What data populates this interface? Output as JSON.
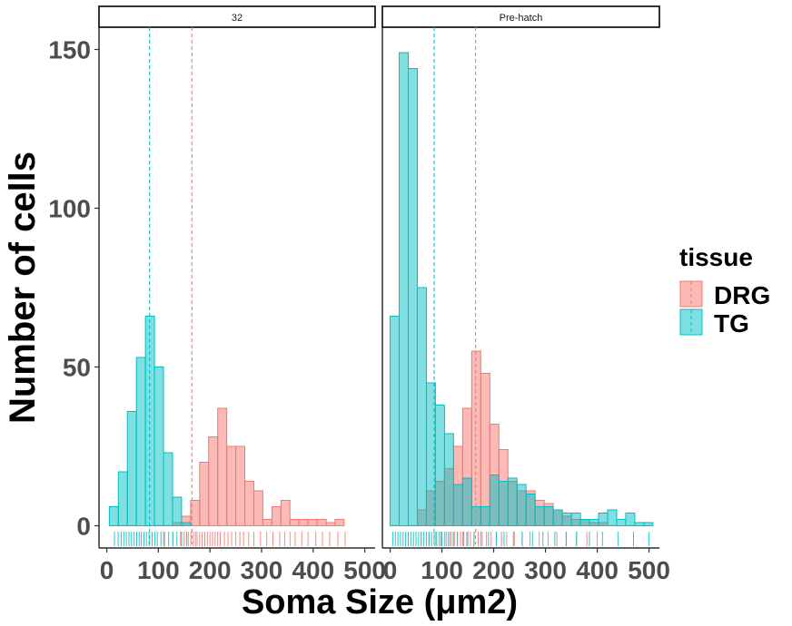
{
  "chart_data": {
    "type": "histogram",
    "xlabel": "Soma Size (μm2)",
    "ylabel": "Number of cells",
    "xlim": [
      -15,
      520
    ],
    "ylim": [
      -7,
      157
    ],
    "xticks": [
      0,
      100,
      200,
      300,
      400,
      500
    ],
    "yticks": [
      0,
      50,
      100,
      150
    ],
    "xtick_labels": [
      "0",
      "100",
      "200",
      "300",
      "400",
      "500"
    ],
    "ytick_labels": [
      "0",
      "50",
      "100",
      "150"
    ],
    "bin_width": 17.5,
    "legend": {
      "title": "tissue",
      "position": "right",
      "entries": [
        {
          "label": "DRG",
          "fill": "#F8766D",
          "stroke": "#F8766D"
        },
        {
          "label": "TG",
          "fill": "#00BFC4",
          "stroke": "#00BFC4"
        }
      ]
    },
    "colors": {
      "DRG": "#F8766D",
      "TG": "#00BFC4"
    },
    "panels": [
      {
        "strip": "32",
        "bin_start": 5,
        "series": [
          {
            "name": "DRG",
            "mean": 165,
            "values": [
              0,
              0,
              0,
              0,
              0,
              0,
              0,
              1,
              3,
              8,
              20,
              28,
              37,
              25,
              25,
              14,
              11,
              2,
              6,
              8,
              2,
              2,
              2,
              2,
              1,
              2,
              0
            ]
          },
          {
            "name": "TG",
            "mean": 83,
            "values": [
              6,
              17,
              36,
              53,
              66,
              50,
              23,
              9,
              1,
              0,
              0,
              0,
              0,
              0,
              0,
              0,
              0,
              0,
              0,
              0,
              0,
              0,
              0,
              0,
              0,
              0,
              0
            ]
          }
        ],
        "rug": {
          "DRG": [
            110,
            128,
            143,
            150,
            158,
            163,
            168,
            172,
            175,
            180,
            185,
            190,
            195,
            200,
            205,
            210,
            215,
            220,
            228,
            235,
            242,
            250,
            258,
            265,
            275,
            285,
            298,
            310,
            322,
            335,
            345,
            355,
            365,
            378,
            390,
            405,
            418,
            432,
            448,
            462
          ],
          "TG": [
            15,
            22,
            28,
            33,
            38,
            43,
            48,
            53,
            58,
            63,
            67,
            72,
            77,
            82,
            88,
            93,
            98,
            105,
            112,
            120,
            128,
            136,
            145,
            155
          ]
        }
      },
      {
        "strip": "Pre-hatch",
        "bin_start": 0,
        "series": [
          {
            "name": "DRG",
            "mean": 165,
            "values": [
              0,
              0,
              0,
              5,
              11,
              14,
              18,
              25,
              37,
              55,
              48,
              32,
              24,
              14,
              11,
              11,
              8,
              7,
              5,
              3,
              2,
              2,
              1,
              1,
              0,
              0,
              0,
              0,
              0
            ]
          },
          {
            "name": "TG",
            "mean": 85,
            "values": [
              66,
              149,
              144,
              75,
              45,
              38,
              29,
              13,
              15,
              6,
              6,
              16,
              14,
              15,
              13,
              10,
              6,
              6,
              5,
              4,
              4,
              2,
              2,
              4,
              5,
              2,
              4,
              1,
              1
            ]
          }
        ],
        "rug": {
          "DRG": [
            60,
            75,
            88,
            98,
            105,
            112,
            118,
            124,
            130,
            136,
            142,
            148,
            155,
            162,
            170,
            178,
            186,
            195,
            205,
            215,
            225,
            240,
            255,
            270,
            288,
            305,
            322,
            340,
            360,
            380,
            400
          ],
          "TG": [
            5,
            10,
            15,
            20,
            25,
            30,
            35,
            40,
            45,
            50,
            55,
            60,
            65,
            70,
            75,
            80,
            85,
            90,
            95,
            100,
            108,
            115,
            122,
            130,
            140,
            150,
            162,
            175,
            190,
            205,
            220,
            238,
            255,
            275,
            295,
            318,
            340,
            360,
            385,
            410,
            440,
            470,
            500
          ]
        }
      }
    ]
  }
}
